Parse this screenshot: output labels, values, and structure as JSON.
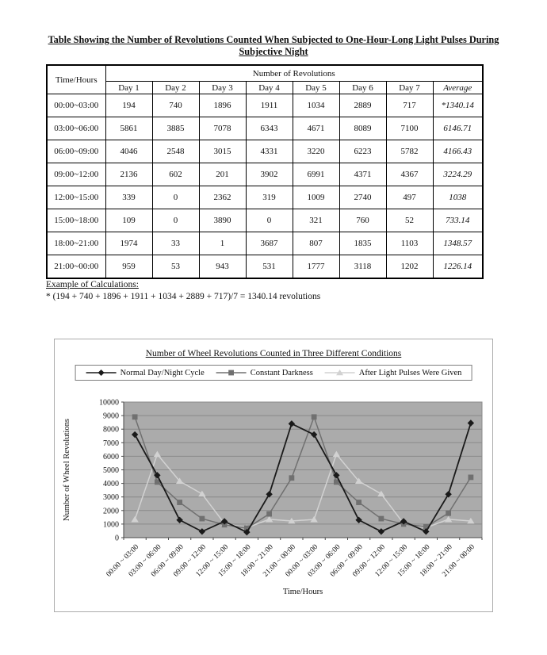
{
  "document": {
    "table_title_line1": "Table Showing the Number of Revolutions Counted When Subjected to One-Hour-Long Light Pulses During",
    "table_title_line2": "Subjective Night",
    "table": {
      "row_header": "Time/Hours",
      "col_group_header": "Number of Revolutions",
      "day_headers": [
        "Day 1",
        "Day 2",
        "Day 3",
        "Day 4",
        "Day 5",
        "Day 6",
        "Day 7"
      ],
      "average_header": "Average",
      "rows": [
        {
          "time": "00:00~03:00",
          "values": [
            "194",
            "740",
            "1896",
            "1911",
            "1034",
            "2889",
            "717"
          ],
          "average": "*1340.14"
        },
        {
          "time": "03:00~06:00",
          "values": [
            "5861",
            "3885",
            "7078",
            "6343",
            "4671",
            "8089",
            "7100"
          ],
          "average": "6146.71"
        },
        {
          "time": "06:00~09:00",
          "values": [
            "4046",
            "2548",
            "3015",
            "4331",
            "3220",
            "6223",
            "5782"
          ],
          "average": "4166.43"
        },
        {
          "time": "09:00~12:00",
          "values": [
            "2136",
            "602",
            "201",
            "3902",
            "6991",
            "4371",
            "4367"
          ],
          "average": "3224.29"
        },
        {
          "time": "12:00~15:00",
          "values": [
            "339",
            "0",
            "2362",
            "319",
            "1009",
            "2740",
            "497"
          ],
          "average": "1038"
        },
        {
          "time": "15:00~18:00",
          "values": [
            "109",
            "0",
            "3890",
            "0",
            "321",
            "760",
            "52"
          ],
          "average": "733.14"
        },
        {
          "time": "18:00~21:00",
          "values": [
            "1974",
            "33",
            "1",
            "3687",
            "807",
            "1835",
            "1103"
          ],
          "average": "1348.57"
        },
        {
          "time": "21:00~00:00",
          "values": [
            "959",
            "53",
            "943",
            "531",
            "1777",
            "3118",
            "1202"
          ],
          "average": "1226.14"
        }
      ]
    },
    "example_heading": "Example of Calculations:",
    "example_line": "* (194 + 740 + 1896 + 1911 + 1034 + 2889 + 717)/7 = 1340.14 revolutions"
  },
  "chart_data": {
    "type": "line",
    "title": "Number of Wheel Revolutions Counted in Three Different Conditions",
    "xlabel": "Time/Hours",
    "ylabel": "Number of Wheel Revolutions",
    "ylim": [
      0,
      10000
    ],
    "ytick_step": 1000,
    "grid": true,
    "legend_position": "top",
    "plot_bg_color": "#ababab",
    "gridline_color": "#8a8a8a",
    "axis_color": "#4a4a4a",
    "categories": [
      "00:00 ~ 03:00",
      "03:00 ~ 06:00",
      "06:00 ~ 09:00",
      "09:00 ~ 12:00",
      "12:00 ~ 15:00",
      "15:00 ~ 18:00",
      "18:00 ~ 21:00",
      "21:00 ~ 00:00",
      "00:00 ~ 03:00",
      "03:00 ~ 06:00",
      "06:00 ~ 09:00",
      "09:00 ~ 12:00",
      "12:00 ~ 15:00",
      "15:00 ~ 18:00",
      "18:00 ~ 21:00",
      "21:00 ~ 00:00"
    ],
    "series": [
      {
        "name": "Normal Day/Night Cycle",
        "marker": "diamond",
        "color": "#1a1a1a",
        "values": [
          7600,
          4600,
          1300,
          450,
          1200,
          400,
          3200,
          8400,
          7600,
          4600,
          1300,
          450,
          1200,
          450,
          3200,
          8450
        ]
      },
      {
        "name": "Constant Darkness",
        "marker": "square",
        "color": "#707070",
        "values": [
          8900,
          4100,
          2600,
          1400,
          950,
          700,
          1750,
          4400,
          8900,
          4100,
          2600,
          1400,
          1000,
          800,
          1800,
          4450
        ]
      },
      {
        "name": "After Light Pulses Were Given",
        "marker": "triangle",
        "color": "#d2d2d2",
        "values": [
          1340,
          6147,
          4166,
          3224,
          1038,
          733,
          1349,
          1226,
          1340,
          6147,
          4166,
          3224,
          1038,
          733,
          1349,
          1226
        ]
      }
    ]
  }
}
